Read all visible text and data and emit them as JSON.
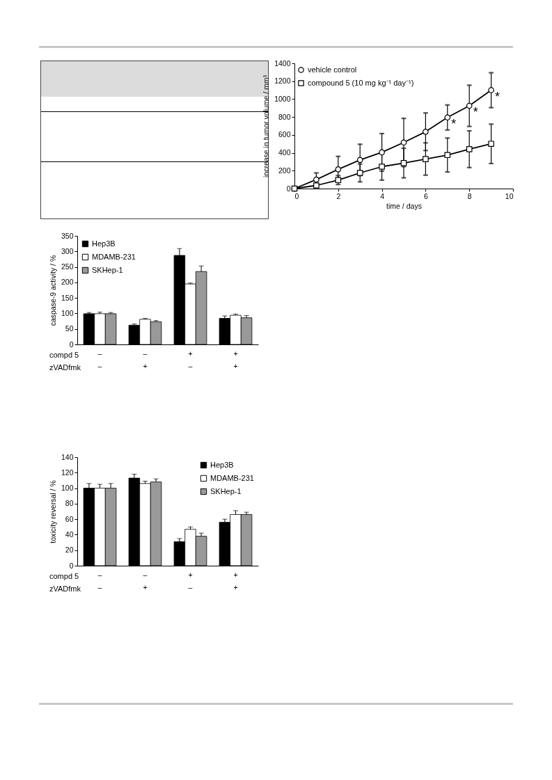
{
  "chart_data": [
    {
      "type": "line",
      "xlabel": "time / days",
      "ylabel": "increase in tumor volume / mm³",
      "legend": "top left",
      "grid": false,
      "x": [
        0,
        1,
        2,
        3,
        4,
        5,
        6,
        7,
        8,
        9
      ],
      "xlim": [
        0,
        10
      ],
      "xticks": [
        0,
        2,
        4,
        6,
        8,
        10
      ],
      "ylim": [
        0,
        1400
      ],
      "yticks": [
        0,
        200,
        400,
        600,
        800,
        1000,
        1200,
        1400
      ],
      "series": [
        {
          "name": "vehicle control",
          "color": "#000000",
          "marker": "circle",
          "values": [
            0,
            100,
            215,
            320,
            405,
            515,
            635,
            795,
            925,
            1100
          ],
          "errors": [
            null,
            75,
            145,
            175,
            210,
            270,
            210,
            140,
            230,
            195
          ]
        },
        {
          "name": "compound 5 (10 mg kg⁻¹ day⁻¹)",
          "color": "#000000",
          "marker": "square",
          "values": [
            0,
            35,
            95,
            175,
            245,
            285,
            330,
            375,
            440,
            500
          ],
          "errors": [
            null,
            null,
            50,
            100,
            150,
            165,
            180,
            190,
            205,
            220
          ]
        }
      ],
      "annotations": [
        {
          "text": "*",
          "x": 7,
          "y": 795
        },
        {
          "text": "*",
          "x": 8,
          "y": 925
        },
        {
          "text": "*",
          "x": 9,
          "y": 1100
        }
      ]
    },
    {
      "type": "bar",
      "ylabel": "caspase-9 activity / %",
      "legend": "top left",
      "grid": false,
      "categories": [
        "–\n–",
        "–\n+",
        "+\n–",
        "+\n+"
      ],
      "ylim": [
        0,
        350
      ],
      "yticks": [
        0,
        50,
        100,
        150,
        200,
        250,
        300,
        350
      ],
      "series": [
        {
          "name": "Hep3B",
          "color": "#000000",
          "values": [
            99,
            62,
            287,
            84
          ],
          "errors": [
            [
              99,
              103
            ],
            [
              62,
              66
            ],
            [
              287,
              309
            ],
            [
              84,
              92
            ]
          ]
        },
        {
          "name": "MDAMB-231",
          "color": "#ffffff",
          "values": [
            99,
            81,
            195,
            94
          ],
          "errors": [
            [
              99,
              104
            ],
            [
              81,
              84
            ],
            [
              195,
              198
            ],
            [
              94,
              98
            ]
          ]
        },
        {
          "name": "SKHep-1",
          "color": "#999999",
          "values": [
            99,
            73,
            235,
            86
          ],
          "errors": [
            [
              99,
              103
            ],
            [
              73,
              77
            ],
            [
              235,
              253
            ],
            [
              86,
              93
            ]
          ]
        }
      ],
      "annotations": [
        "compd 5",
        "zVADfmk"
      ]
    },
    {
      "type": "bar",
      "ylabel": "toxicity reversal / %",
      "legend": "top right",
      "grid": false,
      "categories": [
        "–\n–",
        "–\n+",
        "+\n–",
        "+\n+"
      ],
      "ylim": [
        0,
        140
      ],
      "yticks": [
        0,
        20,
        40,
        60,
        80,
        100,
        120,
        140
      ],
      "series": [
        {
          "name": "Hep3B",
          "color": "#000000",
          "values": [
            100,
            113,
            31,
            56
          ],
          "errors": [
            [
              100,
              106
            ],
            [
              113,
              118
            ],
            [
              31,
              35
            ],
            [
              56,
              60
            ]
          ]
        },
        {
          "name": "MDAMB-231",
          "color": "#ffffff",
          "values": [
            100,
            106,
            47,
            66
          ],
          "errors": [
            [
              100,
              105
            ],
            [
              106,
              109
            ],
            [
              47,
              50
            ],
            [
              66,
              71
            ]
          ]
        },
        {
          "name": "SKHep-1",
          "color": "#999999",
          "values": [
            100,
            108,
            38,
            66
          ],
          "errors": [
            [
              100,
              106
            ],
            [
              108,
              112
            ],
            [
              38,
              42
            ],
            [
              66,
              69
            ]
          ]
        }
      ],
      "annotations": [
        "compd 5",
        "zVADfmk"
      ]
    }
  ]
}
